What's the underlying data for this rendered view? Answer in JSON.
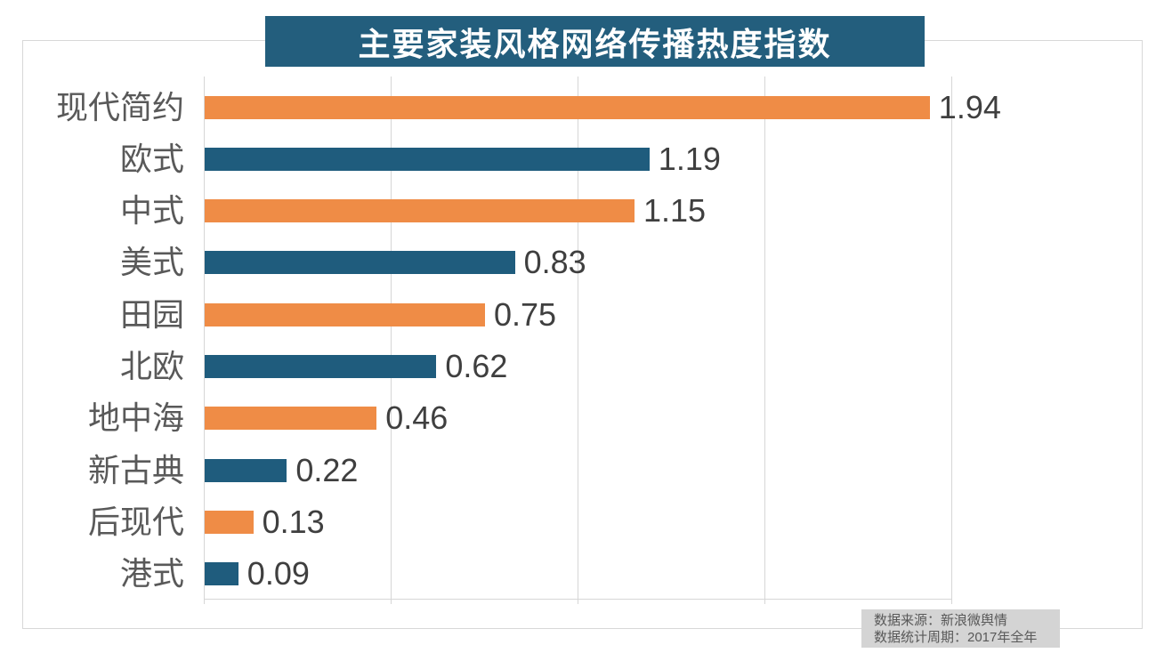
{
  "title": "主要家装风格网络传播热度指数",
  "source": {
    "line1": "数据来源：新浪微舆情",
    "line2": "数据统计周期：2017年全年"
  },
  "chart_data": {
    "type": "bar",
    "orientation": "horizontal",
    "title": "主要家装风格网络传播热度指数",
    "categories": [
      "现代简约",
      "欧式",
      "中式",
      "美式",
      "田园",
      "北欧",
      "地中海",
      "新古典",
      "后现代",
      "港式"
    ],
    "values": [
      1.94,
      1.19,
      1.15,
      0.83,
      0.75,
      0.62,
      0.46,
      0.22,
      0.13,
      0.09
    ],
    "value_labels": [
      "1.94",
      "1.19",
      "1.15",
      "0.83",
      "0.75",
      "0.62",
      "0.46",
      "0.22",
      "0.13",
      "0.09"
    ],
    "xlim": [
      0,
      2.0
    ],
    "grid_step": 0.5,
    "grid": true,
    "legend": false,
    "data_labels": true,
    "bar_color_pattern_note": "bars alternate orange/teal starting with orange",
    "annotations": [
      "数据来源：新浪微舆情",
      "数据统计周期：2017年全年"
    ]
  },
  "colors": {
    "orange_bar": "#EF8C46",
    "teal_bar": "#1F5C7D",
    "title_bg": "#235E7D",
    "title_text": "#FFFFFF",
    "grid": "#D6D6D6",
    "box_border": "#D8D8D8",
    "category_label": "#595959",
    "value_label": "#3F3F3F",
    "source_bg": "#D4D4D4",
    "source_text": "#595959"
  }
}
